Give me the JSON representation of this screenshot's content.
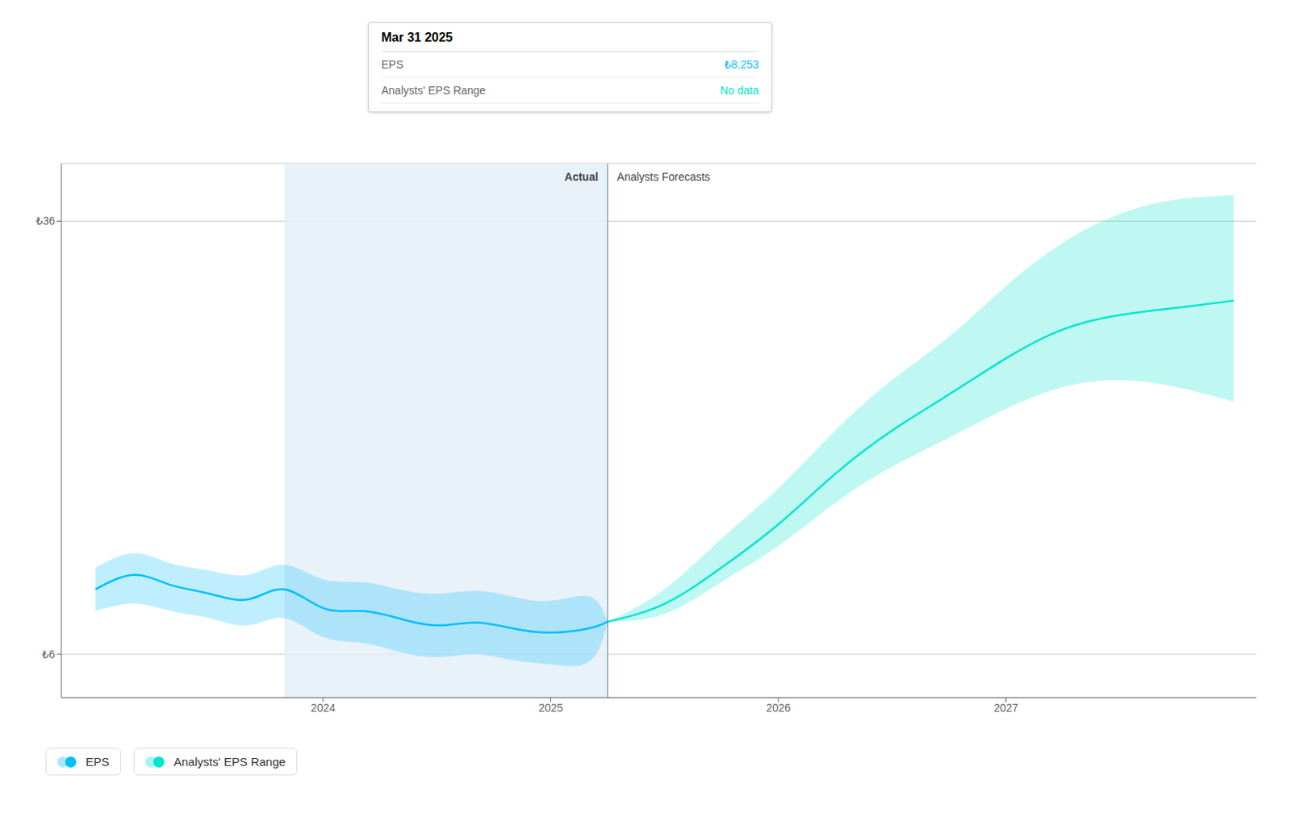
{
  "chart_data": {
    "type": "line",
    "series": [
      {
        "name": "EPS",
        "color": "#00bfff",
        "x": [
          2023.0,
          2023.17,
          2023.33,
          2023.5,
          2023.67,
          2023.83,
          2024.0,
          2024.17,
          2024.33,
          2024.5,
          2024.67,
          2024.83,
          2025.0,
          2025.17,
          2025.25
        ],
        "values": [
          10.5,
          11.5,
          10.8,
          10.2,
          9.8,
          10.5,
          9.2,
          9.0,
          8.5,
          8.0,
          8.2,
          7.8,
          7.5,
          7.8,
          8.253
        ],
        "lower": [
          9.0,
          9.5,
          9.0,
          8.5,
          8.0,
          8.5,
          7.2,
          6.8,
          6.2,
          5.8,
          6.0,
          5.6,
          5.3,
          5.5,
          8.253
        ],
        "upper": [
          12.0,
          13.0,
          12.3,
          11.8,
          11.5,
          12.2,
          11.2,
          11.0,
          10.5,
          10.2,
          10.4,
          10.0,
          9.7,
          10.0,
          8.253
        ]
      },
      {
        "name": "Analysts' EPS Range",
        "color": "#00e5cc",
        "x": [
          2025.25,
          2025.5,
          2025.75,
          2026.0,
          2026.25,
          2026.5,
          2026.75,
          2027.0,
          2027.25,
          2027.5,
          2027.75,
          2028.0
        ],
        "values": [
          8.253,
          9.5,
          12.0,
          15.0,
          18.5,
          21.5,
          24.0,
          26.5,
          28.5,
          29.5,
          30.0,
          30.5
        ],
        "lower": [
          8.253,
          8.8,
          11.0,
          13.5,
          16.5,
          19.0,
          21.0,
          23.0,
          24.5,
          25.0,
          24.5,
          23.5
        ],
        "upper": [
          8.253,
          10.5,
          14.0,
          17.5,
          21.5,
          25.0,
          28.0,
          31.5,
          34.5,
          36.5,
          37.5,
          37.8
        ]
      }
    ],
    "xlim": [
      2022.85,
      2028.1
    ],
    "xticks": [
      2024,
      2025,
      2026,
      2027
    ],
    "ylim": [
      3,
      40
    ],
    "yticks": [
      {
        "value": 6,
        "label": "₺6"
      },
      {
        "value": 36,
        "label": "₺36"
      }
    ],
    "grid": true,
    "legend": "lower left",
    "highlight": [
      2023.83,
      2025.25
    ],
    "divider": 2025.25,
    "annotations": [
      {
        "text": "Actual",
        "x": 2025.25,
        "align": "right"
      },
      {
        "text": "Analysts Forecasts",
        "x": 2025.25,
        "align": "left"
      }
    ],
    "tooltip": {
      "title": "Mar 31 2025",
      "rows": [
        {
          "label": "EPS",
          "value": "₺8.253"
        },
        {
          "label": "Analysts' EPS Range",
          "value": "No data"
        }
      ]
    }
  }
}
